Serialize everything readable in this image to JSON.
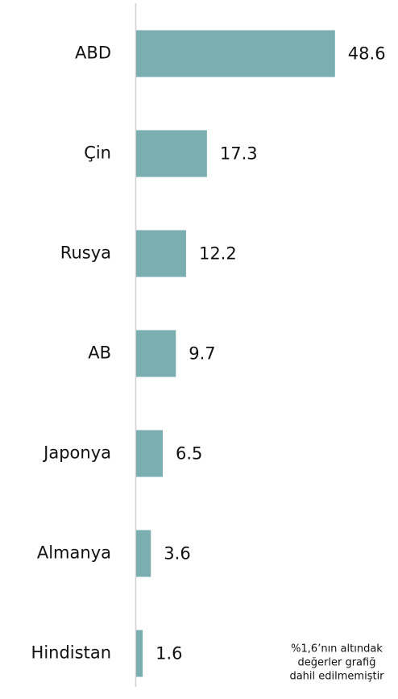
{
  "chart_data": {
    "type": "bar",
    "orientation": "horizontal",
    "categories": [
      "ABD",
      "Çin",
      "Rusya",
      "AB",
      "Japonya",
      "Almanya",
      "Hindistan"
    ],
    "values": [
      48.6,
      17.3,
      12.2,
      9.7,
      6.5,
      3.6,
      1.6
    ],
    "color": "#7aaeb0",
    "xlim": [
      0,
      64
    ],
    "note": [
      "%1,6’nın altındak",
      "değerler grafiğ",
      "dahil edilmemiştir"
    ]
  }
}
